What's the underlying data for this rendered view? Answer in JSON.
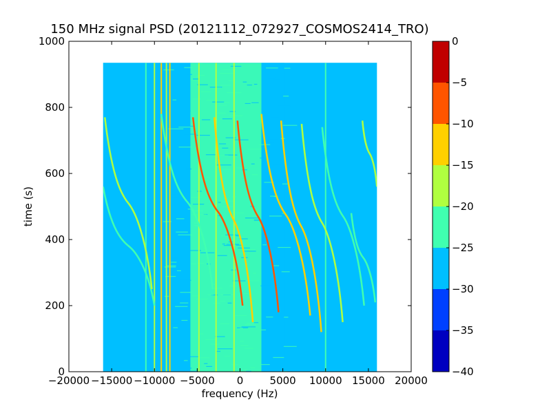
{
  "chart_data": {
    "type": "heatmap",
    "title": "150 MHz signal PSD (20121112_072927_COSMOS2414_TRO)",
    "xlabel": "frequency (Hz)",
    "ylabel": "time (s)",
    "xlim": [
      -20000,
      20000
    ],
    "ylim": [
      0,
      1000
    ],
    "x_ticks": [
      -20000,
      -15000,
      -10000,
      -5000,
      0,
      5000,
      10000,
      15000,
      20000
    ],
    "y_ticks": [
      0,
      200,
      400,
      600,
      800,
      1000
    ],
    "data_extent": {
      "x": [
        -16000,
        16000
      ],
      "y": [
        0,
        935
      ]
    },
    "background_level": -27.5,
    "bands": [
      {
        "x": [
          -5800,
          2500
        ],
        "level": -22.5
      },
      {
        "x": [
          2500,
          5200
        ],
        "level": -26
      }
    ],
    "vertical_lines": [
      {
        "x": -11000,
        "level": -22.5
      },
      {
        "x": -10000,
        "level": -17.5
      },
      {
        "x": -9200,
        "level": -12.5
      },
      {
        "x": -8600,
        "level": -17.5
      },
      {
        "x": -8200,
        "level": -12.5
      },
      {
        "x": -4800,
        "level": -17.5
      },
      {
        "x": -2800,
        "level": -17.5
      },
      {
        "x": -700,
        "level": -17.5
      },
      {
        "x": 10000,
        "level": -22.5
      }
    ],
    "doppler_tracks": [
      {
        "x_top": -16000,
        "y_top": 560,
        "x_bottom": -10000,
        "y_bottom": 200,
        "level": -22.5
      },
      {
        "x_top": -15800,
        "y_top": 770,
        "x_bottom": -10300,
        "y_bottom": 250,
        "level": -17.5
      },
      {
        "x_top": -9200,
        "y_top": 780,
        "x_bottom": -3200,
        "y_bottom": 250,
        "level": -22.5
      },
      {
        "x_top": -5500,
        "y_top": 770,
        "x_bottom": 300,
        "y_bottom": 200,
        "level": -7.5
      },
      {
        "x_top": -3000,
        "y_top": 770,
        "x_bottom": 1500,
        "y_bottom": 150,
        "level": -12.5
      },
      {
        "x_top": -300,
        "y_top": 760,
        "x_bottom": 4500,
        "y_bottom": 180,
        "level": -7.5
      },
      {
        "x_top": 2500,
        "y_top": 780,
        "x_bottom": 8200,
        "y_bottom": 170,
        "level": -12.5
      },
      {
        "x_top": 4800,
        "y_top": 760,
        "x_bottom": 9500,
        "y_bottom": 120,
        "level": -12.5
      },
      {
        "x_top": 7200,
        "y_top": 750,
        "x_bottom": 12000,
        "y_bottom": 150,
        "level": -17.5
      },
      {
        "x_top": 9600,
        "y_top": 740,
        "x_bottom": 14500,
        "y_bottom": 200,
        "level": -22.5
      },
      {
        "x_top": 13000,
        "y_top": 480,
        "x_bottom": 15800,
        "y_bottom": 210,
        "level": -22.5
      },
      {
        "x_top": 14300,
        "y_top": 760,
        "x_bottom": 16000,
        "y_bottom": 560,
        "level": -17.5
      }
    ],
    "colorbar": {
      "levels": [
        -40,
        -35,
        -30,
        -25,
        -20,
        -15,
        -10,
        -5,
        0
      ],
      "colors": [
        "#0000c0",
        "#0040ff",
        "#00bfff",
        "#40ffb0",
        "#b0ff40",
        "#ffd000",
        "#ff5500",
        "#c00000"
      ]
    },
    "grid": false
  }
}
